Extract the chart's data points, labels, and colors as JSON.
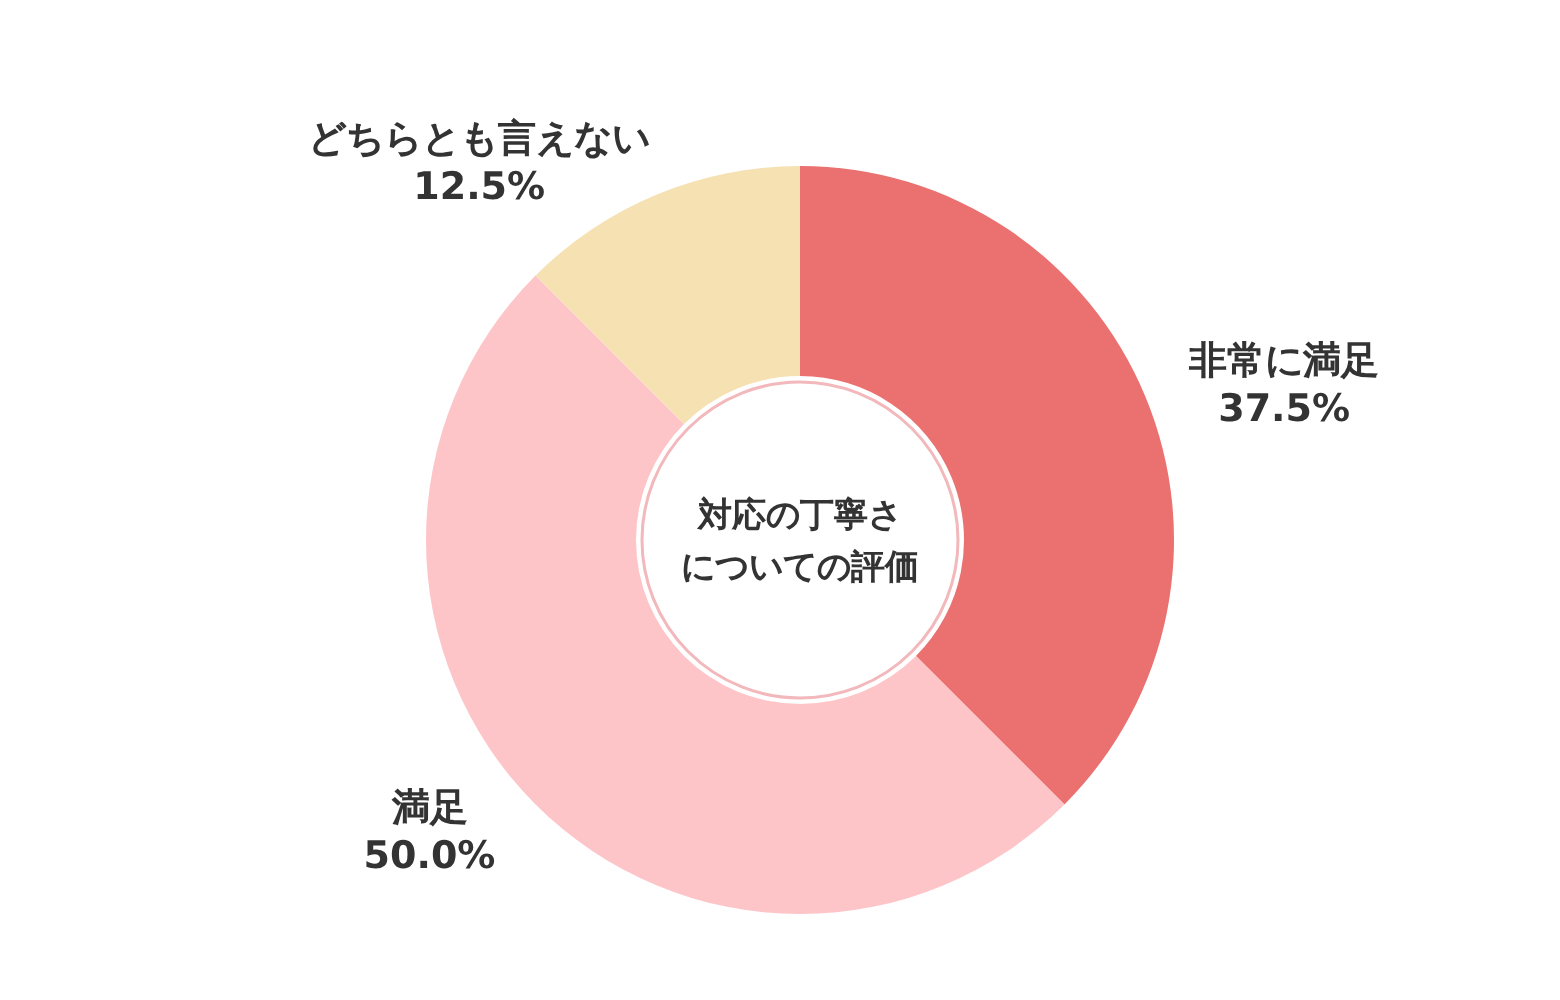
{
  "chart_data": {
    "type": "donut",
    "title": "対応の丁寧さについての評価",
    "categories": [
      "非常に満足",
      "満足",
      "どちらとも言えない"
    ],
    "values": [
      37.5,
      50.0,
      12.5
    ],
    "value_labels": [
      "37.5%",
      "50.0%",
      "12.5%"
    ],
    "colors": [
      "#eb7070",
      "#fec5c8",
      "#f5e1b2"
    ],
    "legend": false
  }
}
